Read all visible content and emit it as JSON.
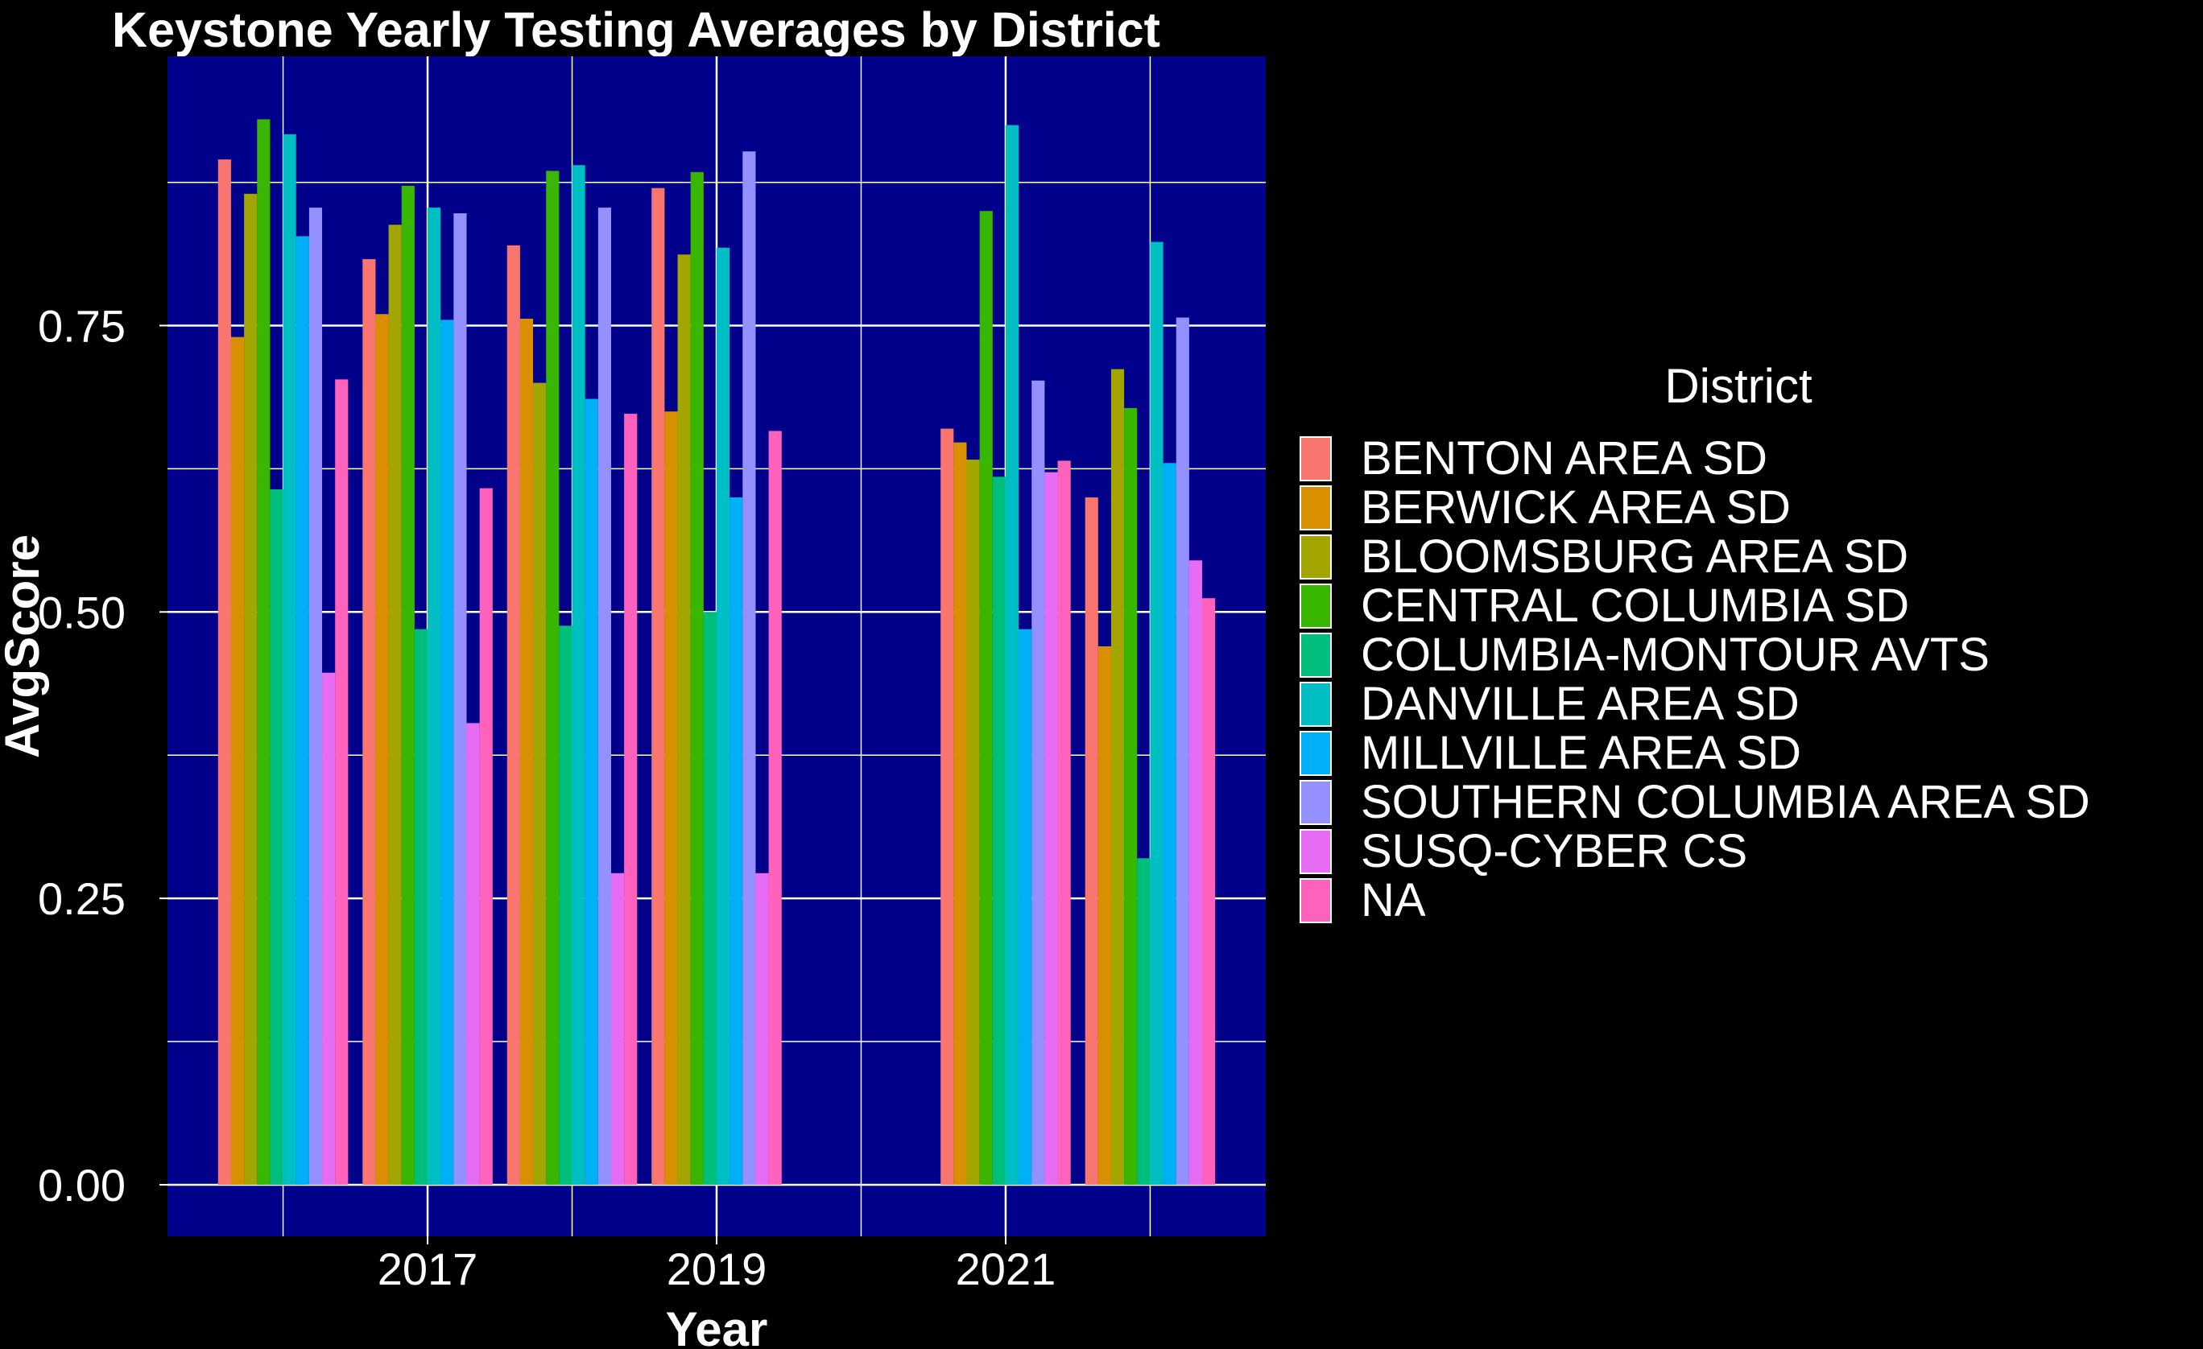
{
  "chart_data": {
    "type": "bar",
    "title": "Keystone Yearly Testing Averages by District",
    "xlabel": "Year",
    "ylabel": "AvgScore",
    "x_tick_labels": [
      "2017",
      "2019",
      "2021"
    ],
    "y_tick_labels": [
      "0.00",
      "0.25",
      "0.50",
      "0.75"
    ],
    "ylim": [
      -0.045,
      0.985
    ],
    "xlim": [
      2015.2,
      2022.8
    ],
    "y_ticks": [
      0,
      0.25,
      0.5,
      0.75
    ],
    "x_ticks": [
      2017,
      2019,
      2021
    ],
    "plot_background": "#00008B",
    "grid": true,
    "legend_title": "District",
    "legend_position": "right",
    "categories": [
      2016,
      2017,
      2018,
      2019,
      2021,
      2022
    ],
    "series": [
      {
        "name": "BENTON AREA SD",
        "color": "#F8766D",
        "values": [
          0.895,
          0.808,
          0.82,
          0.87,
          0.66,
          0.6
        ]
      },
      {
        "name": "BERWICK AREA SD",
        "color": "#D89000",
        "values": [
          0.74,
          0.76,
          0.756,
          0.675,
          0.648,
          0.47
        ]
      },
      {
        "name": "BLOOMSBURG AREA SD",
        "color": "#A3A500",
        "values": [
          0.865,
          0.838,
          0.7,
          0.812,
          0.633,
          0.712
        ]
      },
      {
        "name": "CENTRAL COLUMBIA SD",
        "color": "#39B600",
        "values": [
          0.93,
          0.872,
          0.885,
          0.884,
          0.85,
          0.678
        ]
      },
      {
        "name": "COLUMBIA-MONTOUR AVTS",
        "color": "#00BF7D",
        "values": [
          0.607,
          0.485,
          0.488,
          0.5,
          0.618,
          0.285
        ]
      },
      {
        "name": "DANVILLE AREA SD",
        "color": "#00BFC4",
        "values": [
          0.917,
          0.853,
          0.89,
          0.818,
          0.925,
          0.823
        ]
      },
      {
        "name": "MILLVILLE AREA SD",
        "color": "#00B0F6",
        "values": [
          0.828,
          0.755,
          0.686,
          0.6,
          0.485,
          0.63
        ]
      },
      {
        "name": "SOUTHERN COLUMBIA AREA SD",
        "color": "#9590FF",
        "values": [
          0.853,
          0.848,
          0.853,
          0.902,
          0.702,
          0.757
        ]
      },
      {
        "name": "SUSQ-CYBER CS",
        "color": "#E76BF3",
        "values": [
          0.447,
          0.403,
          0.272,
          0.272,
          0.622,
          0.545
        ]
      },
      {
        "name": "NA",
        "color": "#FF62BC",
        "values": [
          0.703,
          0.608,
          0.673,
          0.658,
          0.632,
          0.512
        ]
      }
    ]
  }
}
